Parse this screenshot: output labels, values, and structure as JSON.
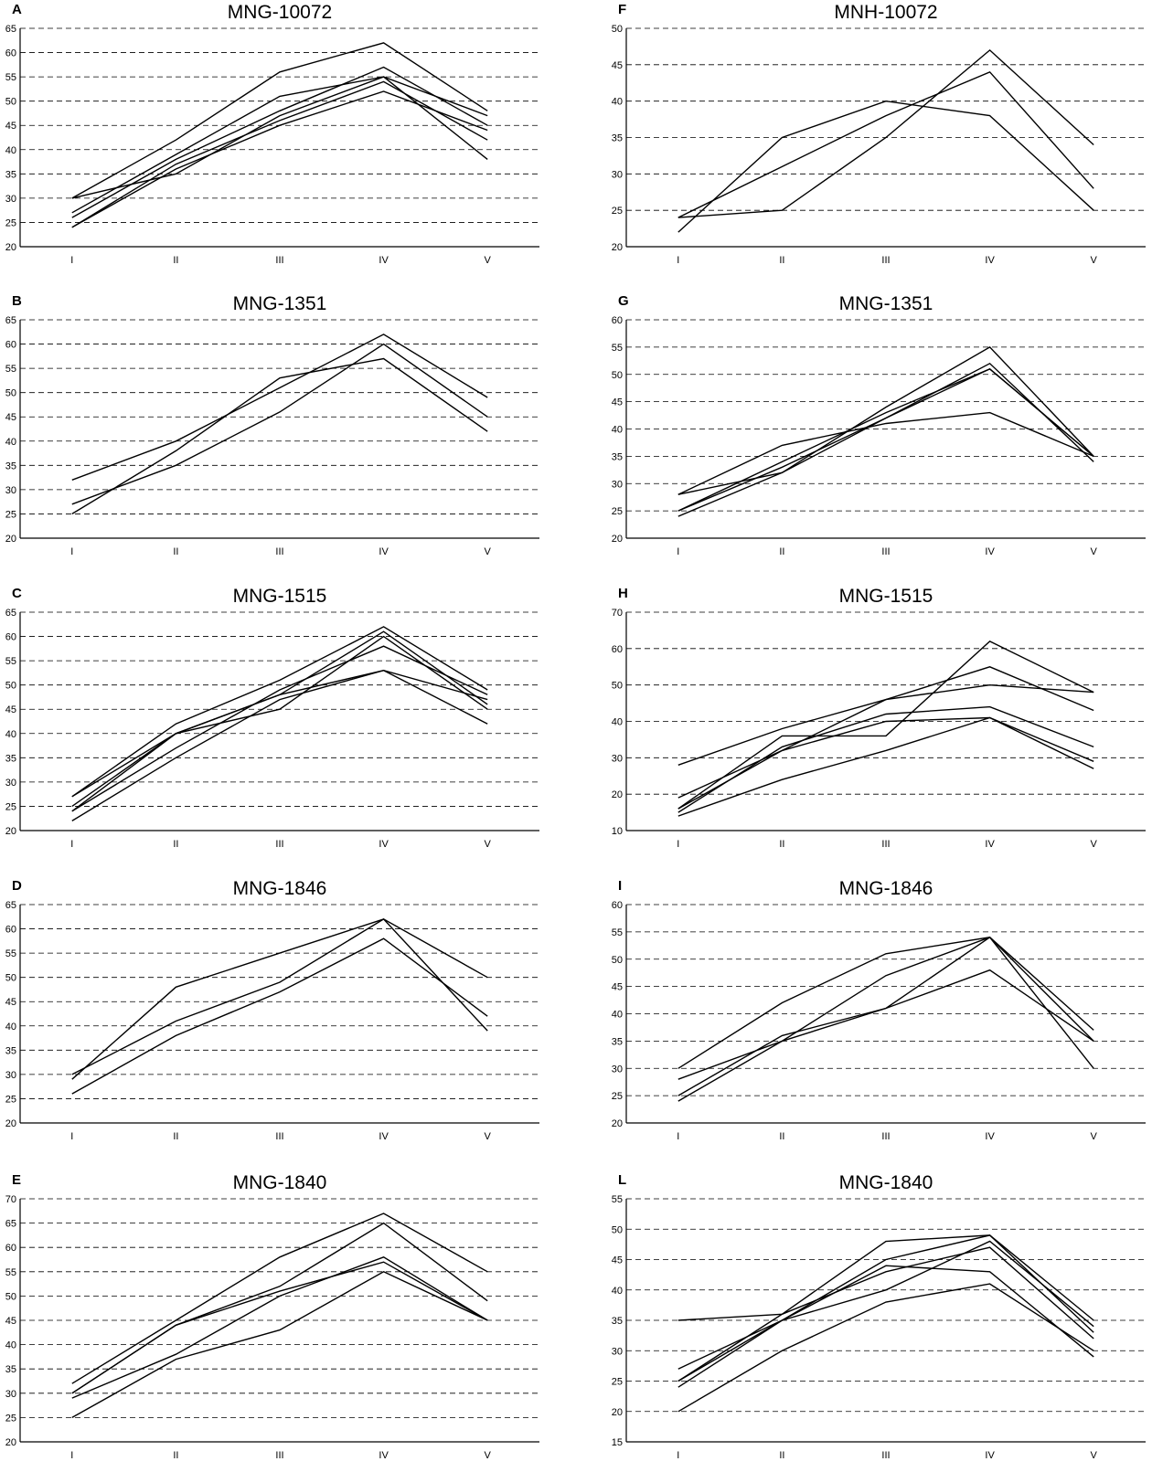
{
  "chart_data": [
    {
      "panel_label": "A",
      "title": "MNG-10072",
      "type": "line",
      "categories": [
        "I",
        "II",
        "III",
        "IV",
        "V"
      ],
      "ylim": [
        20,
        65
      ],
      "yticks": [
        20,
        25,
        30,
        35,
        40,
        45,
        50,
        55,
        60,
        65
      ],
      "grid": true,
      "series": [
        {
          "values": [
            30,
            42,
            56,
            62,
            48
          ]
        },
        {
          "values": [
            27,
            39,
            51,
            55,
            47
          ]
        },
        {
          "values": [
            26,
            38,
            48,
            57,
            45
          ]
        },
        {
          "values": [
            24,
            37,
            46,
            54,
            42
          ]
        },
        {
          "values": [
            24,
            36,
            45,
            52,
            44
          ]
        },
        {
          "values": [
            30,
            35,
            47,
            55,
            38
          ]
        }
      ]
    },
    {
      "panel_label": "F",
      "title": "MNH-10072",
      "type": "line",
      "categories": [
        "I",
        "II",
        "III",
        "IV",
        "V"
      ],
      "ylim": [
        20,
        50
      ],
      "yticks": [
        20,
        25,
        30,
        35,
        40,
        45,
        50
      ],
      "grid": true,
      "series": [
        {
          "values": [
            22,
            35,
            40,
            38,
            25
          ]
        },
        {
          "values": [
            24,
            31,
            38,
            44,
            28
          ]
        },
        {
          "values": [
            24,
            25,
            35,
            47,
            34
          ]
        }
      ]
    },
    {
      "panel_label": "B",
      "title": "MNG-1351",
      "type": "line",
      "categories": [
        "I",
        "II",
        "III",
        "IV",
        "V"
      ],
      "ylim": [
        20,
        65
      ],
      "yticks": [
        20,
        25,
        30,
        35,
        40,
        45,
        50,
        55,
        60,
        65
      ],
      "grid": true,
      "series": [
        {
          "values": [
            32,
            40,
            51,
            62,
            49
          ]
        },
        {
          "values": [
            27,
            35,
            46,
            60,
            45
          ]
        },
        {
          "values": [
            25,
            38,
            53,
            57,
            42
          ]
        }
      ]
    },
    {
      "panel_label": "G",
      "title": "MNG-1351",
      "type": "line",
      "categories": [
        "I",
        "II",
        "III",
        "IV",
        "V"
      ],
      "ylim": [
        20,
        60
      ],
      "yticks": [
        20,
        25,
        30,
        35,
        40,
        45,
        50,
        55,
        60
      ],
      "grid": true,
      "series": [
        {
          "values": [
            28,
            37,
            41,
            43,
            35
          ]
        },
        {
          "values": [
            28,
            32,
            44,
            55,
            35
          ]
        },
        {
          "values": [
            25,
            33,
            42,
            52,
            34
          ]
        },
        {
          "values": [
            24,
            32,
            42,
            51,
            35
          ]
        },
        {
          "values": [
            25,
            34,
            43,
            51,
            35
          ]
        }
      ]
    },
    {
      "panel_label": "C",
      "title": "MNG-1515",
      "type": "line",
      "categories": [
        "I",
        "II",
        "III",
        "IV",
        "V"
      ],
      "ylim": [
        20,
        65
      ],
      "yticks": [
        20,
        25,
        30,
        35,
        40,
        45,
        50,
        55,
        60,
        65
      ],
      "grid": true,
      "series": [
        {
          "values": [
            27,
            42,
            51,
            62,
            49
          ]
        },
        {
          "values": [
            25,
            40,
            48,
            61,
            46
          ]
        },
        {
          "values": [
            24,
            40,
            45,
            60,
            45
          ]
        },
        {
          "values": [
            27,
            40,
            48,
            53,
            47
          ]
        },
        {
          "values": [
            22,
            35,
            47,
            53,
            42
          ]
        },
        {
          "values": [
            24,
            37,
            49,
            58,
            48
          ]
        }
      ]
    },
    {
      "panel_label": "H",
      "title": "MNG-1515",
      "type": "line",
      "categories": [
        "I",
        "II",
        "III",
        "IV",
        "V"
      ],
      "ylim": [
        10,
        70
      ],
      "yticks": [
        10,
        20,
        30,
        40,
        50,
        60,
        70
      ],
      "grid": true,
      "series": [
        {
          "values": [
            28,
            38,
            46,
            55,
            43
          ]
        },
        {
          "values": [
            19,
            32,
            46,
            50,
            48
          ]
        },
        {
          "values": [
            16,
            36,
            36,
            62,
            48
          ]
        },
        {
          "values": [
            15,
            33,
            42,
            44,
            33
          ]
        },
        {
          "values": [
            14,
            24,
            32,
            41,
            27
          ]
        },
        {
          "values": [
            16,
            32,
            40,
            41,
            29
          ]
        }
      ]
    },
    {
      "panel_label": "D",
      "title": "MNG-1846",
      "type": "line",
      "categories": [
        "I",
        "II",
        "III",
        "IV",
        "V"
      ],
      "ylim": [
        20,
        65
      ],
      "yticks": [
        20,
        25,
        30,
        35,
        40,
        45,
        50,
        55,
        60,
        65
      ],
      "grid": true,
      "series": [
        {
          "values": [
            29,
            48,
            55,
            62,
            50
          ]
        },
        {
          "values": [
            30,
            41,
            49,
            62,
            39
          ]
        },
        {
          "values": [
            26,
            38,
            47,
            58,
            42
          ]
        }
      ]
    },
    {
      "panel_label": "I",
      "title": "MNG-1846",
      "type": "line",
      "categories": [
        "I",
        "II",
        "III",
        "IV",
        "V"
      ],
      "ylim": [
        20,
        60
      ],
      "yticks": [
        20,
        25,
        30,
        35,
        40,
        45,
        50,
        55,
        60
      ],
      "grid": true,
      "series": [
        {
          "values": [
            30,
            42,
            51,
            54,
            37
          ]
        },
        {
          "values": [
            28,
            35,
            41,
            54,
            30
          ]
        },
        {
          "values": [
            25,
            36,
            41,
            48,
            35
          ]
        },
        {
          "values": [
            24,
            35,
            47,
            54,
            35
          ]
        }
      ]
    },
    {
      "panel_label": "E",
      "title": "MNG-1840",
      "type": "line",
      "categories": [
        "I",
        "II",
        "III",
        "IV",
        "V"
      ],
      "ylim": [
        20,
        70
      ],
      "yticks": [
        20,
        25,
        30,
        35,
        40,
        45,
        50,
        55,
        60,
        65,
        70
      ],
      "grid": true,
      "series": [
        {
          "values": [
            32,
            45,
            58,
            67,
            55
          ]
        },
        {
          "values": [
            30,
            44,
            52,
            65,
            49
          ]
        },
        {
          "values": [
            29,
            38,
            50,
            58,
            45
          ]
        },
        {
          "values": [
            25,
            37,
            43,
            55,
            45
          ]
        },
        {
          "values": [
            30,
            44,
            51,
            57,
            45
          ]
        }
      ]
    },
    {
      "panel_label": "L",
      "title": "MNG-1840",
      "type": "line",
      "categories": [
        "I",
        "II",
        "III",
        "IV",
        "V"
      ],
      "ylim": [
        15,
        55
      ],
      "yticks": [
        15,
        20,
        25,
        30,
        35,
        40,
        45,
        50,
        55
      ],
      "grid": true,
      "series": [
        {
          "values": [
            35,
            36,
            48,
            49,
            35
          ]
        },
        {
          "values": [
            27,
            35,
            45,
            49,
            33
          ]
        },
        {
          "values": [
            25,
            35,
            44,
            43,
            29
          ]
        },
        {
          "values": [
            24,
            35,
            40,
            48,
            34
          ]
        },
        {
          "values": [
            20,
            30,
            38,
            41,
            30
          ]
        },
        {
          "values": [
            25,
            36,
            43,
            47,
            32
          ]
        }
      ]
    }
  ]
}
